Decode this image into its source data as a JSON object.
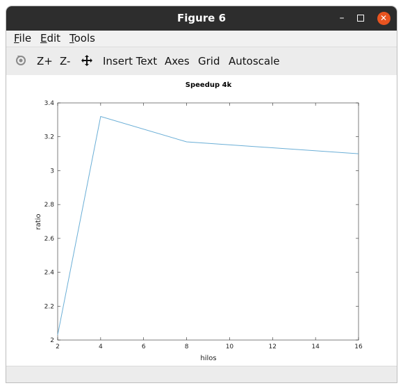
{
  "window": {
    "title": "Figure 6"
  },
  "menubar": {
    "file": {
      "u": "F",
      "rest": "ile"
    },
    "edit": {
      "u": "E",
      "rest": "dit"
    },
    "tools": {
      "u": "T",
      "rest": "ools"
    }
  },
  "toolbar": {
    "rotate_icon": "rotate-icon",
    "zoom_in_label": "Z+",
    "zoom_out_label": "Z-",
    "pan_icon": "pan-icon",
    "insert_text_label": "Insert Text",
    "axes_label": "Axes",
    "grid_label": "Grid",
    "autoscale_label": "Autoscale"
  },
  "chart_data": {
    "type": "line",
    "title": "Speedup 4k",
    "xlabel": "hilos",
    "ylabel": "ratio",
    "xlim": [
      2,
      16
    ],
    "ylim": [
      2,
      3.4
    ],
    "xticks": [
      2,
      4,
      6,
      8,
      10,
      12,
      14,
      16
    ],
    "yticks": [
      2,
      2.2,
      2.4,
      2.6,
      2.8,
      3,
      3.2,
      3.4
    ],
    "grid": false,
    "series": [
      {
        "x": [
          2,
          4,
          8,
          16
        ],
        "y": [
          2.03,
          3.32,
          3.17,
          3.1
        ],
        "color": "#6aaed6"
      }
    ]
  }
}
